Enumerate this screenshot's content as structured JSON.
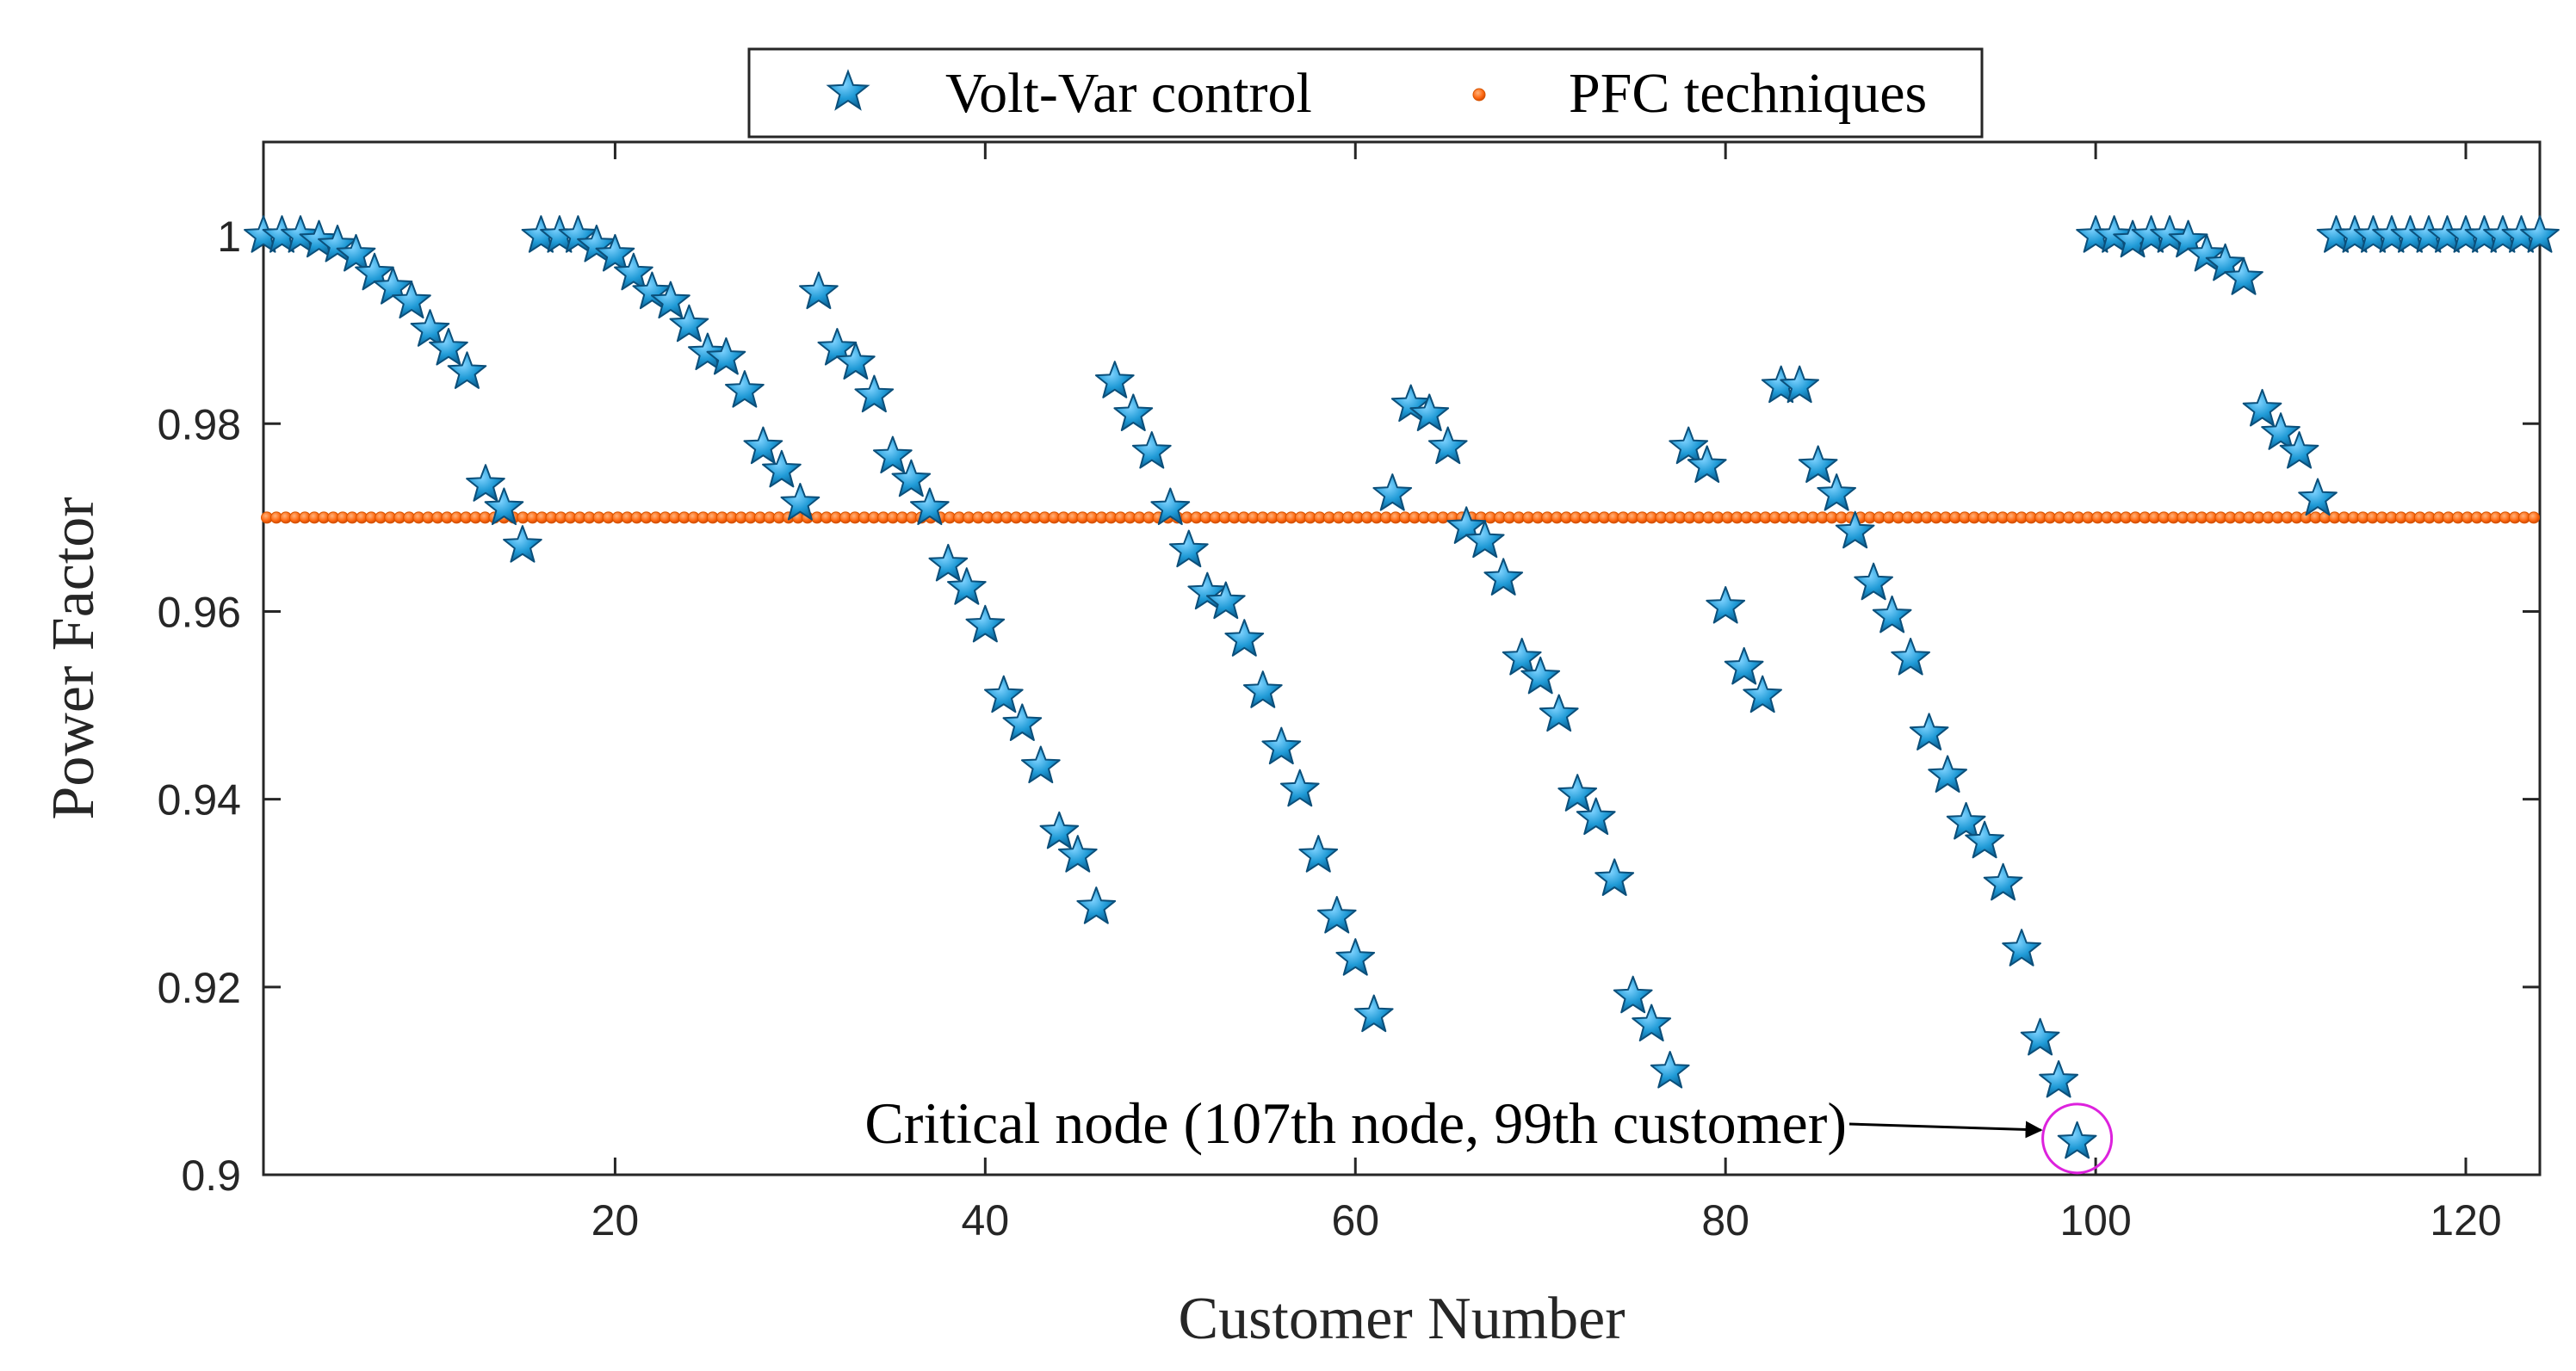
{
  "chart_data": {
    "type": "scatter",
    "xlabel": "Customer Number",
    "ylabel": "Power Factor",
    "xlim": [
      1,
      124
    ],
    "ylim": [
      0.9,
      1.01
    ],
    "xticks": [
      20,
      40,
      60,
      80,
      100,
      120
    ],
    "yticks": [
      0.9,
      0.92,
      0.94,
      0.96,
      0.98,
      1
    ],
    "ytick_labels": [
      "0.9",
      "0.92",
      "0.94",
      "0.96",
      "0.98",
      "1"
    ],
    "grid": false,
    "legend_position": "top-center",
    "series": [
      {
        "name": "Volt-Var control",
        "marker": "star",
        "color": "#1f9ad6",
        "x": [
          1,
          2,
          3,
          4,
          5,
          6,
          7,
          8,
          9,
          10,
          11,
          12,
          13,
          14,
          15,
          16,
          17,
          18,
          19,
          20,
          21,
          22,
          23,
          24,
          25,
          26,
          27,
          28,
          29,
          30,
          31,
          32,
          33,
          34,
          35,
          36,
          37,
          38,
          39,
          40,
          41,
          42,
          43,
          44,
          45,
          46,
          47,
          48,
          49,
          50,
          51,
          52,
          53,
          54,
          55,
          56,
          57,
          58,
          59,
          60,
          61,
          62,
          63,
          64,
          65,
          66,
          67,
          68,
          69,
          70,
          71,
          72,
          73,
          74,
          75,
          76,
          77,
          78,
          79,
          80,
          81,
          82,
          83,
          84,
          85,
          86,
          87,
          88,
          89,
          90,
          91,
          92,
          93,
          94,
          95,
          96,
          97,
          98,
          99,
          100,
          101,
          102,
          103,
          104,
          105,
          106,
          107,
          108,
          109,
          110,
          111,
          112,
          113,
          114,
          115,
          116,
          117,
          118,
          119,
          120,
          121,
          122,
          123,
          124
        ],
        "y": [
          1.0,
          1.0,
          1.0,
          0.9995,
          0.999,
          0.998,
          0.996,
          0.9945,
          0.993,
          0.99,
          0.988,
          0.9855,
          0.9735,
          0.971,
          0.967,
          1.0,
          1.0,
          1.0,
          0.999,
          0.998,
          0.996,
          0.994,
          0.993,
          0.9905,
          0.9875,
          0.987,
          0.9835,
          0.9775,
          0.975,
          0.9715,
          0.994,
          0.988,
          0.9865,
          0.983,
          0.9765,
          0.974,
          0.971,
          0.965,
          0.9625,
          0.9585,
          0.951,
          0.948,
          0.9435,
          0.9365,
          0.934,
          0.9285,
          0.9845,
          0.981,
          0.977,
          0.971,
          0.9665,
          0.962,
          0.961,
          0.957,
          0.9515,
          0.9455,
          0.941,
          0.934,
          0.9275,
          0.923,
          0.917,
          0.9725,
          0.982,
          0.981,
          0.9775,
          0.969,
          0.9675,
          0.9635,
          0.955,
          0.953,
          0.949,
          0.9405,
          0.938,
          0.9315,
          0.919,
          0.916,
          0.911,
          0.9775,
          0.9755,
          0.9605,
          0.954,
          0.951,
          0.984,
          0.984,
          0.9755,
          0.9725,
          0.9685,
          0.963,
          0.9595,
          0.955,
          0.947,
          0.9425,
          0.9375,
          0.9355,
          0.931,
          0.924,
          0.9145,
          0.91,
          0.9035,
          1.0,
          1.0,
          0.9995,
          1.0,
          1.0,
          0.9995,
          0.998,
          0.997,
          0.9955,
          0.9815,
          0.979,
          0.977,
          0.972,
          1.0,
          1.0,
          1.0,
          1.0,
          1.0,
          1.0,
          1.0,
          1.0,
          1.0,
          1.0,
          1.0,
          1.0
        ]
      },
      {
        "name": "PFC techniques",
        "marker": "dot",
        "color": "#ff6a13",
        "x_range": [
          1,
          124
        ],
        "y_constant": 0.97
      }
    ],
    "annotations": [
      {
        "text": "Critical node (107th node, 99th customer)",
        "points_to": {
          "x": 99,
          "y": 0.9035
        },
        "highlight": "circle",
        "highlight_color": "#dd22dd"
      }
    ]
  }
}
